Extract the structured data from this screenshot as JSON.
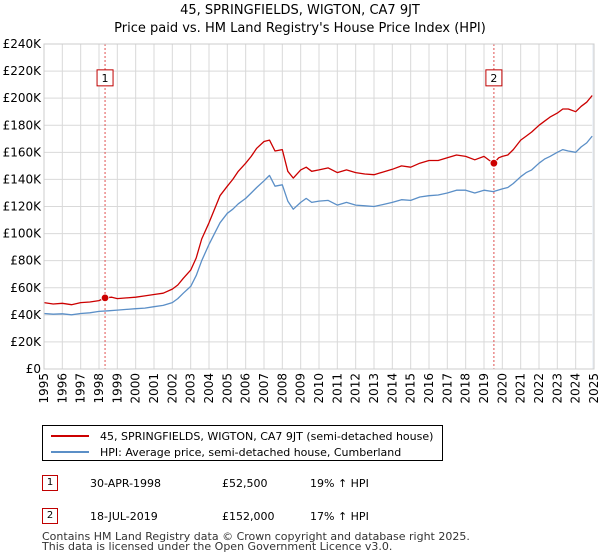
{
  "header": {
    "title_line1": "45, SPRINGFIELDS, WIGTON, CA7 9JT",
    "title_line2": "Price paid vs. HM Land Registry's House Price Index (HPI)"
  },
  "chart_data": {
    "type": "line",
    "title": "45, SPRINGFIELDS, WIGTON, CA7 9JT",
    "subtitle": "Price paid vs. HM Land Registry's House Price Index (HPI)",
    "xlim": [
      1995,
      2025
    ],
    "ylim": [
      0,
      240000
    ],
    "y_ticks": [
      0,
      20000,
      40000,
      60000,
      80000,
      100000,
      120000,
      140000,
      160000,
      180000,
      200000,
      220000,
      240000
    ],
    "y_tick_labels": [
      "£0",
      "£20K",
      "£40K",
      "£60K",
      "£80K",
      "£100K",
      "£120K",
      "£140K",
      "£160K",
      "£180K",
      "£200K",
      "£220K",
      "£240K"
    ],
    "x_ticks": [
      1995,
      1996,
      1997,
      1998,
      1999,
      2000,
      2001,
      2002,
      2003,
      2004,
      2005,
      2006,
      2007,
      2008,
      2009,
      2010,
      2011,
      2012,
      2013,
      2014,
      2015,
      2016,
      2017,
      2018,
      2019,
      2020,
      2021,
      2022,
      2023,
      2024,
      2025
    ],
    "x_tick_labels": [
      "1995",
      "1996",
      "1997",
      "1998",
      "1999",
      "2000",
      "2001",
      "2002",
      "2003",
      "2004",
      "2005",
      "2006",
      "2007",
      "2008",
      "2009",
      "2010",
      "2011",
      "2012",
      "2013",
      "2014",
      "2015",
      "2016",
      "2017",
      "2018",
      "2019",
      "2020",
      "2021",
      "2022",
      "2023",
      "2024",
      "2025"
    ],
    "grid": true,
    "series": [
      {
        "name": "45, SPRINGFIELDS, WIGTON, CA7 9JT (semi-detached house)",
        "color": "#cc0000",
        "x": [
          1995.0,
          1995.5,
          1996.0,
          1996.5,
          1997.0,
          1997.5,
          1998.0,
          1998.33,
          1998.7,
          1999.0,
          1999.5,
          2000.0,
          2000.5,
          2001.0,
          2001.5,
          2002.0,
          2002.3,
          2002.6,
          2003.0,
          2003.3,
          2003.6,
          2004.0,
          2004.3,
          2004.6,
          2005.0,
          2005.3,
          2005.6,
          2006.0,
          2006.3,
          2006.6,
          2007.0,
          2007.3,
          2007.6,
          2008.0,
          2008.3,
          2008.6,
          2009.0,
          2009.3,
          2009.6,
          2010.0,
          2010.5,
          2011.0,
          2011.5,
          2012.0,
          2012.5,
          2013.0,
          2013.5,
          2014.0,
          2014.5,
          2015.0,
          2015.5,
          2016.0,
          2016.5,
          2017.0,
          2017.5,
          2018.0,
          2018.5,
          2019.0,
          2019.3,
          2019.54,
          2019.8,
          2020.0,
          2020.3,
          2020.6,
          2021.0,
          2021.3,
          2021.6,
          2022.0,
          2022.3,
          2022.6,
          2023.0,
          2023.3,
          2023.6,
          2024.0,
          2024.3,
          2024.6,
          2024.9
        ],
        "values": [
          49000,
          48000,
          48500,
          47500,
          49000,
          49500,
          50500,
          52500,
          53000,
          52000,
          52500,
          53000,
          54000,
          55000,
          56000,
          59000,
          62000,
          67000,
          73000,
          82000,
          96000,
          108000,
          118000,
          128000,
          135000,
          140000,
          146000,
          152000,
          157000,
          163000,
          168000,
          169000,
          161000,
          162000,
          146000,
          141000,
          147000,
          149000,
          146000,
          147000,
          148500,
          145000,
          147000,
          145000,
          144000,
          143500,
          145500,
          147500,
          150000,
          149000,
          152000,
          154000,
          154000,
          156000,
          158000,
          157000,
          154500,
          157000,
          154000,
          152000,
          156000,
          157000,
          158000,
          162000,
          169000,
          172000,
          175000,
          180000,
          183000,
          186000,
          189000,
          192000,
          192000,
          190000,
          194000,
          197000,
          202000
        ]
      },
      {
        "name": "HPI: Average price, semi-detached house, Cumberland",
        "color": "#5b8fc7",
        "x": [
          1995.0,
          1995.5,
          1996.0,
          1996.5,
          1997.0,
          1997.5,
          1998.0,
          1998.5,
          1999.0,
          1999.5,
          2000.0,
          2000.5,
          2001.0,
          2001.5,
          2002.0,
          2002.3,
          2002.6,
          2003.0,
          2003.3,
          2003.6,
          2004.0,
          2004.3,
          2004.6,
          2005.0,
          2005.3,
          2005.6,
          2006.0,
          2006.3,
          2006.6,
          2007.0,
          2007.3,
          2007.6,
          2008.0,
          2008.3,
          2008.6,
          2009.0,
          2009.3,
          2009.6,
          2010.0,
          2010.5,
          2011.0,
          2011.5,
          2012.0,
          2012.5,
          2013.0,
          2013.5,
          2014.0,
          2014.5,
          2015.0,
          2015.5,
          2016.0,
          2016.5,
          2017.0,
          2017.5,
          2018.0,
          2018.5,
          2019.0,
          2019.5,
          2020.0,
          2020.3,
          2020.6,
          2021.0,
          2021.3,
          2021.6,
          2022.0,
          2022.3,
          2022.6,
          2023.0,
          2023.3,
          2023.6,
          2024.0,
          2024.3,
          2024.6,
          2024.9
        ],
        "values": [
          41000,
          40500,
          40800,
          40000,
          41000,
          41500,
          42500,
          43000,
          43500,
          44000,
          44500,
          45000,
          46000,
          47000,
          49000,
          52000,
          56000,
          61000,
          69000,
          80000,
          92000,
          100000,
          108000,
          115000,
          118000,
          122000,
          126000,
          130000,
          134000,
          139000,
          143000,
          135000,
          136000,
          124000,
          118000,
          123000,
          126000,
          123000,
          124000,
          124500,
          121000,
          123000,
          121000,
          120500,
          120000,
          121500,
          123000,
          125000,
          124500,
          127000,
          128000,
          128500,
          130000,
          132000,
          132000,
          130000,
          132000,
          131000,
          133000,
          134000,
          137000,
          142000,
          145000,
          147000,
          152000,
          155000,
          157000,
          160000,
          162000,
          161000,
          160000,
          164000,
          167000,
          172000
        ]
      }
    ],
    "markers": [
      {
        "label": "1",
        "x": 1998.33,
        "price": 52500
      },
      {
        "label": "2",
        "x": 2019.54,
        "price": 152000
      }
    ],
    "legend_position": "bottom"
  },
  "legend": {
    "items": [
      {
        "label": "45, SPRINGFIELDS, WIGTON, CA7 9JT (semi-detached house)",
        "color": "#cc0000"
      },
      {
        "label": "HPI: Average price, semi-detached house, Cumberland",
        "color": "#5b8fc7"
      }
    ]
  },
  "sales": [
    {
      "num": "1",
      "date": "30-APR-1998",
      "price": "£52,500",
      "hpi": "19% ↑ HPI"
    },
    {
      "num": "2",
      "date": "18-JUL-2019",
      "price": "£152,000",
      "hpi": "17% ↑ HPI"
    }
  ],
  "footer": {
    "line1": "Contains HM Land Registry data © Crown copyright and database right 2025.",
    "line2": "This data is licensed under the Open Government Licence v3.0."
  }
}
